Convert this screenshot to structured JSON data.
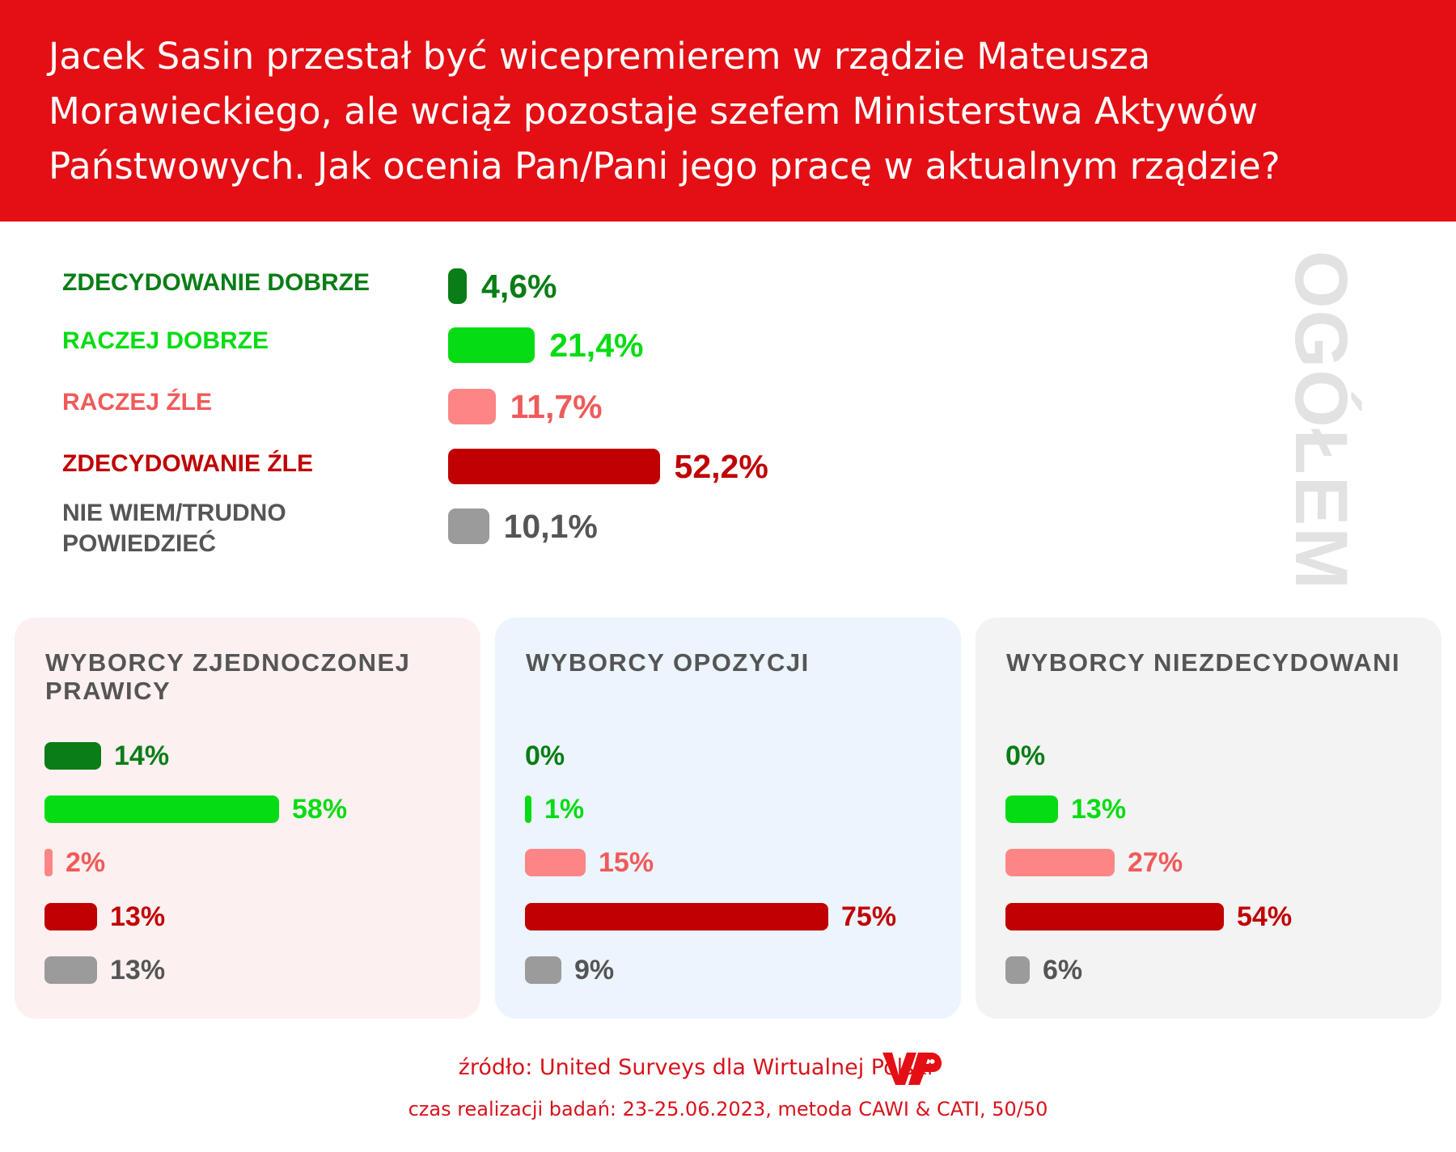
{
  "title": "Jacek Sasin przestał być wicepremierem w rządzie Mateusza Morawieckiego, ale wciąż pozostaje szefem Ministerstwa Aktywów Państwowych. Jak ocenia Pan/Pani jego pracę w aktualnym rządzie?",
  "side_label": "OGÓŁEM",
  "colors": {
    "header_bg": "#e30f14",
    "zdecydowanie_dobrze": "#0a7d16",
    "raczej_dobrze": "#05dc13",
    "raczej_zle": "#fd8585",
    "zdecydowanie_zle": "#c00000",
    "nie_wiem": "#9b9b9b"
  },
  "chart_data": [
    {
      "type": "bar",
      "title": "OGÓŁEM",
      "categories": [
        "ZDECYDOWANIE DOBRZE",
        "RACZEJ DOBRZE",
        "RACZEJ ŹLE",
        "ZDECYDOWANIE ŹLE",
        "NIE WIEM/TRUDNO POWIEDZIEĆ"
      ],
      "values": [
        4.6,
        21.4,
        11.7,
        52.2,
        10.1
      ],
      "value_labels": [
        "4,6%",
        "21,4%",
        "11,7%",
        "52,2%",
        "10,1%"
      ],
      "unit": "%"
    },
    {
      "type": "bar",
      "title": "WYBORCY ZJEDNOCZONEJ PRAWICY",
      "values": [
        14,
        58,
        2,
        13,
        13
      ],
      "value_labels": [
        "14%",
        "58%",
        "2%",
        "13%",
        "13%"
      ],
      "unit": "%"
    },
    {
      "type": "bar",
      "title": "WYBORCY OPOZYCJI",
      "values": [
        0,
        1,
        15,
        75,
        9
      ],
      "value_labels": [
        "0%",
        "1%",
        "15%",
        "75%",
        "9%"
      ],
      "unit": "%"
    },
    {
      "type": "bar",
      "title": "WYBORCY NIEZDECYDOWANI",
      "values": [
        0,
        13,
        27,
        54,
        6
      ],
      "value_labels": [
        "0%",
        "13%",
        "27%",
        "54%",
        "6%"
      ],
      "unit": "%"
    }
  ],
  "footer": {
    "source": "źródło: United Surveys dla Wirtualnej Polski",
    "details": "czas realizacji badań: 23-25.06.2023, metoda CAWI & CATI, 50/50"
  }
}
